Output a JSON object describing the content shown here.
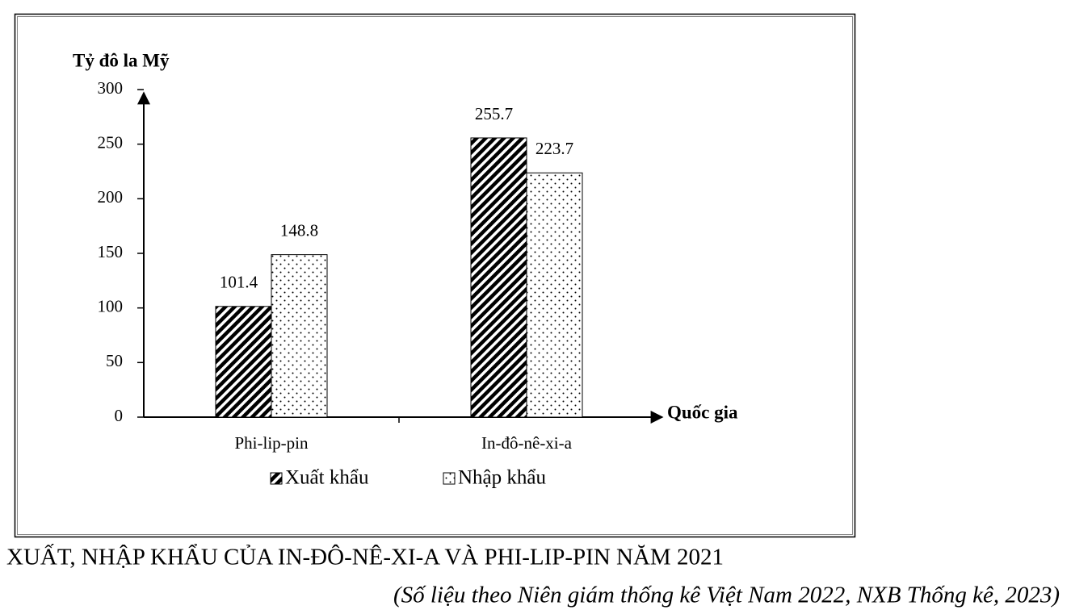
{
  "chart_data": {
    "type": "bar",
    "title": "XUẤT, NHẬP KHẨU CỦA IN-ĐÔ-NÊ-XI-A VÀ PHI-LIP-PIN NĂM 2021",
    "source": "(Số liệu theo Niên giám thống kê Việt Nam 2022, NXB Thống kê, 2023)",
    "y_label": "Tỷ đô la Mỹ",
    "x_label": "Quốc gia",
    "categories": [
      "Phi-lip-pin",
      "In-đô-nê-xi-a"
    ],
    "series": [
      {
        "name": "Xuất khẩu",
        "color": "#000000",
        "pattern": "hatch",
        "values": [
          101.4,
          255.7
        ]
      },
      {
        "name": "Nhập khẩu",
        "color": "#000000",
        "pattern": "dots",
        "values": [
          148.8,
          223.7
        ]
      }
    ],
    "ylim": [
      0,
      300
    ],
    "yticks": [
      0,
      50,
      100,
      150,
      200,
      250,
      300
    ],
    "grid": false
  }
}
